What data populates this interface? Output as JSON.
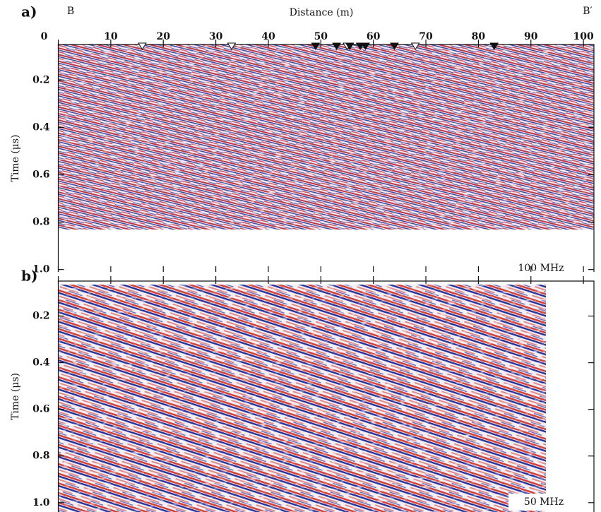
{
  "figure": {
    "x_axis_label": "Distance (m)",
    "left_end_label": "B",
    "right_end_label": "B′",
    "xlim": [
      0,
      102
    ],
    "xticks": [
      0,
      10,
      20,
      30,
      40,
      50,
      60,
      70,
      80,
      90,
      100
    ]
  },
  "panels": [
    {
      "label": "a)",
      "frequency": "100 MHz",
      "y_axis_label": "Time (μs)",
      "ylim": [
        0.05,
        1.01
      ],
      "yticks": [
        0.2,
        0.4,
        0.6,
        0.8,
        {
          "value": 1,
          "label": "1.0"
        }
      ],
      "open_markers": [
        16,
        33,
        55,
        68
      ],
      "filled_markers": [
        49,
        53,
        55.5,
        57.5,
        58.5,
        64,
        83
      ]
    },
    {
      "label": "b)",
      "frequency": "50 MHz",
      "y_axis_label": "Time (μs)",
      "ylim": [
        0.05,
        1.04
      ],
      "yticks": [
        0.2,
        0.4,
        0.6,
        0.8,
        {
          "value": 1,
          "label": "1.0"
        }
      ]
    }
  ]
}
